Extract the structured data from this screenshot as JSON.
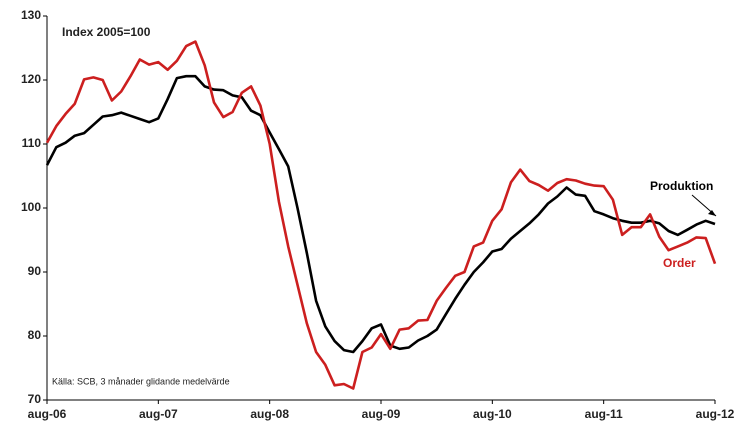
{
  "chart_data": {
    "type": "line",
    "subtitle": "Index 2005=100",
    "source": "Källa: SCB, 3 månader glidande medelvärde",
    "categories": [
      "aug-06",
      null,
      null,
      null,
      null,
      null,
      null,
      null,
      null,
      null,
      null,
      null,
      "aug-07",
      null,
      null,
      null,
      null,
      null,
      null,
      null,
      null,
      null,
      null,
      null,
      "aug-08",
      null,
      null,
      null,
      null,
      null,
      null,
      null,
      null,
      null,
      null,
      null,
      "aug-09",
      null,
      null,
      null,
      null,
      null,
      null,
      null,
      null,
      null,
      null,
      null,
      "aug-10",
      null,
      null,
      null,
      null,
      null,
      null,
      null,
      null,
      null,
      null,
      null,
      "aug-11",
      null,
      null,
      null,
      null,
      null,
      null,
      null,
      null,
      null,
      null,
      null,
      "aug-12"
    ],
    "series": [
      {
        "name": "Produktion",
        "color": "#000000",
        "values": [
          106.7,
          109.5,
          110.2,
          111.3,
          111.7,
          113.0,
          114.3,
          114.5,
          114.9,
          114.4,
          113.9,
          113.4,
          114.0,
          117.0,
          120.3,
          120.6,
          120.6,
          119.0,
          118.5,
          118.4,
          117.6,
          117.3,
          115.2,
          114.5,
          111.8,
          109.2,
          106.5,
          100.0,
          93.0,
          85.5,
          81.5,
          79.2,
          77.8,
          77.5,
          79.2,
          81.2,
          81.8,
          78.5,
          78.0,
          78.2,
          79.3,
          80.0,
          81.0,
          83.4,
          85.8,
          88.0,
          90.0,
          91.5,
          93.2,
          93.6,
          95.2,
          96.4,
          97.6,
          99.0,
          100.7,
          101.8,
          103.2,
          102.1,
          101.9,
          99.5,
          99.0,
          98.4,
          98.0,
          97.7,
          97.7,
          98.0,
          97.6,
          96.4,
          95.8,
          96.6,
          97.4,
          98.0,
          97.5
        ]
      },
      {
        "name": "Order",
        "color": "#cc1f1f",
        "values": [
          110.2,
          112.8,
          114.7,
          116.3,
          120.1,
          120.4,
          120.0,
          116.8,
          118.2,
          120.6,
          123.2,
          122.4,
          122.8,
          121.6,
          123.0,
          125.3,
          126.0,
          122.3,
          116.5,
          114.2,
          115.0,
          118.0,
          119.0,
          116.0,
          110.0,
          101.0,
          94.0,
          88.0,
          82.0,
          77.5,
          75.5,
          72.3,
          72.5,
          71.8,
          77.5,
          78.2,
          80.3,
          78.0,
          81.0,
          81.2,
          82.4,
          82.5,
          85.5,
          87.5,
          89.4,
          90.0,
          94.0,
          94.6,
          98.0,
          99.8,
          104.0,
          106.0,
          104.2,
          103.6,
          102.7,
          103.9,
          104.5,
          104.3,
          103.8,
          103.5,
          103.4,
          101.3,
          95.8,
          97.0,
          97.0,
          99.0,
          95.5,
          93.4,
          94.0,
          94.6,
          95.4,
          95.3,
          91.3
        ]
      }
    ],
    "ylim": [
      70,
      130
    ],
    "yticks": [
      70,
      80,
      90,
      100,
      110,
      120,
      130
    ]
  }
}
